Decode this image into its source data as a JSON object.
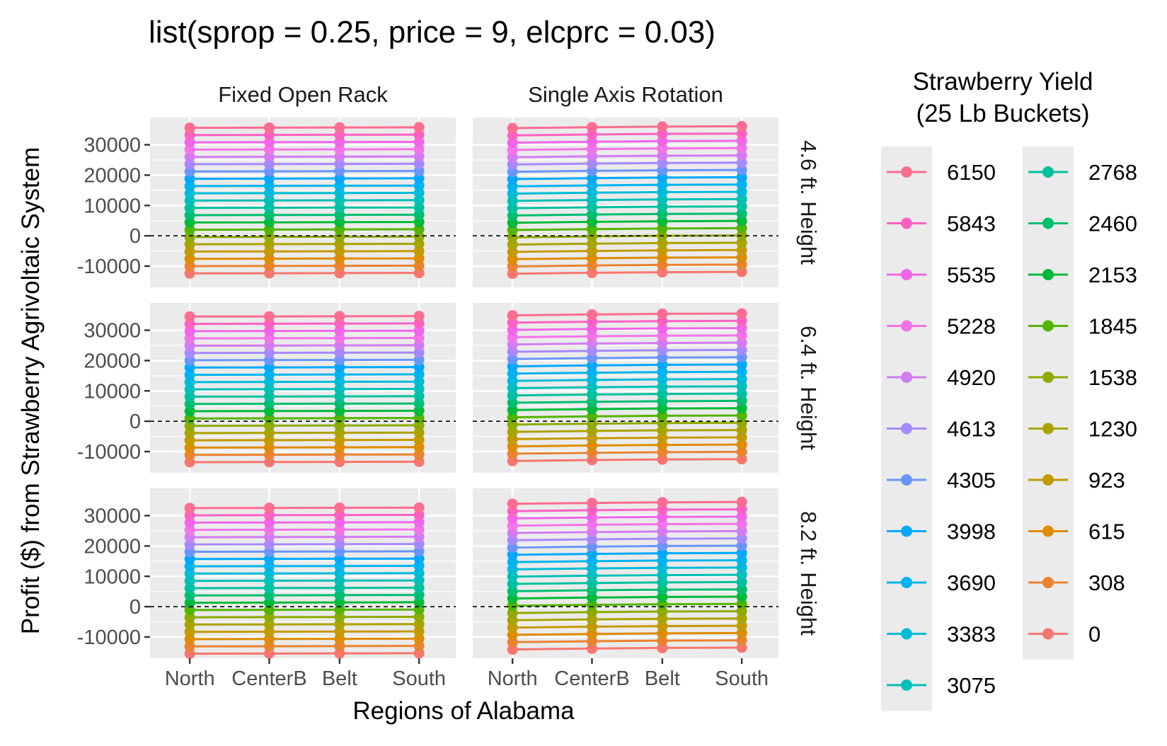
{
  "chart_data": {
    "type": "line",
    "title": "list(sprop = 0.25, price = 9, elcprc = 0.03)",
    "xlabel": "Regions of Alabama",
    "ylabel": "Profit ($) from Strawberry Agrivoltaic System",
    "categories": [
      "North",
      "CenterB",
      "Belt",
      "South"
    ],
    "col_facets": [
      "Fixed Open Rack",
      "Single Axis Rotation"
    ],
    "row_facets": [
      "4.6 ft. Height",
      "6.4 ft. Height",
      "8.2 ft. Height"
    ],
    "y_ticks": [
      -10000,
      0,
      10000,
      20000,
      30000
    ],
    "y_tick_labels": [
      "-10000",
      "0",
      "10000",
      "20000",
      "30000"
    ],
    "ylim": [
      -17000,
      39000
    ],
    "reference_line": 0,
    "grid": true,
    "legend": {
      "title_line1": "Strawberry Yield",
      "title_line2": "(25 Lb Buckets)",
      "position": "right"
    },
    "yield_levels": [
      6150,
      5843,
      5535,
      5228,
      4920,
      4613,
      4305,
      3998,
      3690,
      3383,
      3075,
      2768,
      2460,
      2153,
      1845,
      1538,
      1230,
      923,
      615,
      308,
      0
    ],
    "series_colors": [
      "#FF6C91",
      "#FF61C3",
      "#F066EA",
      "#F374E8",
      "#D27CF3",
      "#A58AFF",
      "#6A95FF",
      "#00A9FF",
      "#00B4EF",
      "#00BCD8",
      "#00C0B8",
      "#00C19F",
      "#00BE70",
      "#00BA38",
      "#53B400",
      "#8FAA00",
      "#ABA300",
      "#C49A00",
      "#DE8C00",
      "#EA8331",
      "#F8766D"
    ],
    "panels": [
      {
        "row": 0,
        "col": 0,
        "top": [
          35600,
          35650,
          35700,
          35750
        ],
        "bottom": [
          -12400,
          -12350,
          -12300,
          -12250
        ]
      },
      {
        "row": 0,
        "col": 1,
        "top": [
          35500,
          35800,
          36000,
          36100
        ],
        "bottom": [
          -12500,
          -12200,
          -12000,
          -11900
        ]
      },
      {
        "row": 1,
        "col": 0,
        "top": [
          34500,
          34550,
          34600,
          34650
        ],
        "bottom": [
          -13500,
          -13450,
          -13400,
          -13350
        ]
      },
      {
        "row": 1,
        "col": 1,
        "top": [
          34900,
          35200,
          35400,
          35500
        ],
        "bottom": [
          -13100,
          -12800,
          -12600,
          -12500
        ]
      },
      {
        "row": 2,
        "col": 0,
        "top": [
          32500,
          32550,
          32600,
          32650
        ],
        "bottom": [
          -15500,
          -15450,
          -15400,
          -15350
        ]
      },
      {
        "row": 2,
        "col": 1,
        "top": [
          33900,
          34200,
          34400,
          34500
        ],
        "bottom": [
          -14100,
          -13800,
          -13600,
          -13500
        ]
      }
    ]
  }
}
